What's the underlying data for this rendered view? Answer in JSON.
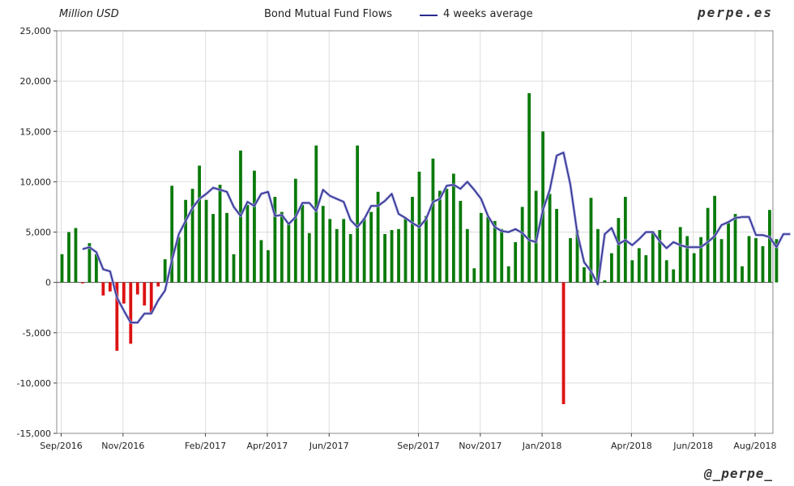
{
  "chart_data": {
    "type": "bar",
    "title": "Bond Mutual Fund Flows",
    "unit_label": "Million USD",
    "ylim": [
      -15000,
      25000
    ],
    "y_ticks": [
      25000,
      20000,
      15000,
      10000,
      5000,
      0,
      -5000,
      -10000,
      -15000
    ],
    "y_tick_labels": [
      "25,000",
      "20,000",
      "15,000",
      "10,000",
      "5,000",
      "0",
      "-5,000",
      "-10,000",
      "-15,000"
    ],
    "x_tick_labels": [
      "Sep/2016",
      "Nov/2016",
      "Feb/2017",
      "Apr/2017",
      "Jun/2017",
      "Sep/2017",
      "Nov/2017",
      "Jan/2018",
      "Apr/2018",
      "Jun/2018",
      "Aug/2018"
    ],
    "x_tick_week_index": [
      0,
      9,
      21,
      30,
      39,
      52,
      61,
      70,
      83,
      92,
      101
    ],
    "grid": true,
    "colors": {
      "positive": "#0a7a0a",
      "negative": "#dd1111",
      "average_line": "#2b2b8c",
      "grid": "#dddddd"
    },
    "series": [
      {
        "name": "Bond Mutual Fund Flows",
        "kind": "bar",
        "values": [
          2800,
          5000,
          5400,
          -100,
          3900,
          2800,
          -1300,
          -900,
          -6800,
          -2100,
          -6100,
          -1200,
          -2300,
          -3100,
          -400,
          2300,
          9600,
          4500,
          8200,
          9300,
          11600,
          8200,
          6800,
          9700,
          6900,
          2800,
          13100,
          7700,
          11100,
          4200,
          3200,
          8500,
          7000,
          6000,
          10300,
          7700,
          4900,
          13600,
          7600,
          6300,
          5300,
          6300,
          4800,
          13600,
          6400,
          7000,
          9000,
          4800,
          5200,
          5300,
          6400,
          8500,
          11000,
          6600,
          12300,
          9100,
          9300,
          10800,
          8100,
          5300,
          1400,
          6900,
          6500,
          6100,
          5300,
          1600,
          4000,
          7500,
          18800,
          9100,
          15000,
          8800,
          7300,
          -12100,
          4400,
          5200,
          1500,
          8400,
          5300,
          200,
          2900,
          6400,
          8500,
          2200,
          3400,
          2700,
          5100,
          5200,
          2200,
          1300,
          5500,
          4600,
          2900,
          4500,
          7400,
          8600,
          4300,
          5900,
          6800,
          1600,
          4600,
          4400,
          3600,
          7200,
          4300
        ]
      },
      {
        "name": "4 weeks average",
        "kind": "line",
        "start_index": 3,
        "values": [
          3300,
          3500,
          3000,
          1300,
          1100,
          -1500,
          -2800,
          -4000,
          -4000,
          -3100,
          -3100,
          -1800,
          -800,
          2200,
          4800,
          6100,
          7400,
          8300,
          8800,
          9400,
          9200,
          9000,
          7500,
          6600,
          8000,
          7600,
          8800,
          9000,
          6600,
          6700,
          5800,
          6500,
          7900,
          7900,
          7100,
          9200,
          8600,
          8300,
          8000,
          6200,
          5500,
          6300,
          7600,
          7600,
          8100,
          8800,
          6800,
          6400,
          5900,
          5500,
          6300,
          8000,
          8300,
          9600,
          9700,
          9300,
          10000,
          9200,
          8300,
          6600,
          5500,
          5100,
          5000,
          5300,
          4900,
          4200,
          4000,
          7200,
          9200,
          12600,
          12900,
          9700,
          4900,
          2000,
          1100,
          -200,
          4800,
          5400,
          3800,
          4200,
          3700,
          4300,
          5000,
          5000,
          4100,
          3400,
          4000,
          3700,
          3500,
          3500,
          3500,
          4000,
          4600,
          5700,
          6000,
          6400,
          6500,
          6500,
          4700,
          4700,
          4500,
          3500,
          4800,
          4800
        ]
      }
    ]
  },
  "labels": {
    "unit": "Million USD",
    "title": "Bond Mutual Fund Flows",
    "legend_line": "4 weeks average",
    "brand": "perpe.es",
    "handle": "@_perpe_"
  }
}
